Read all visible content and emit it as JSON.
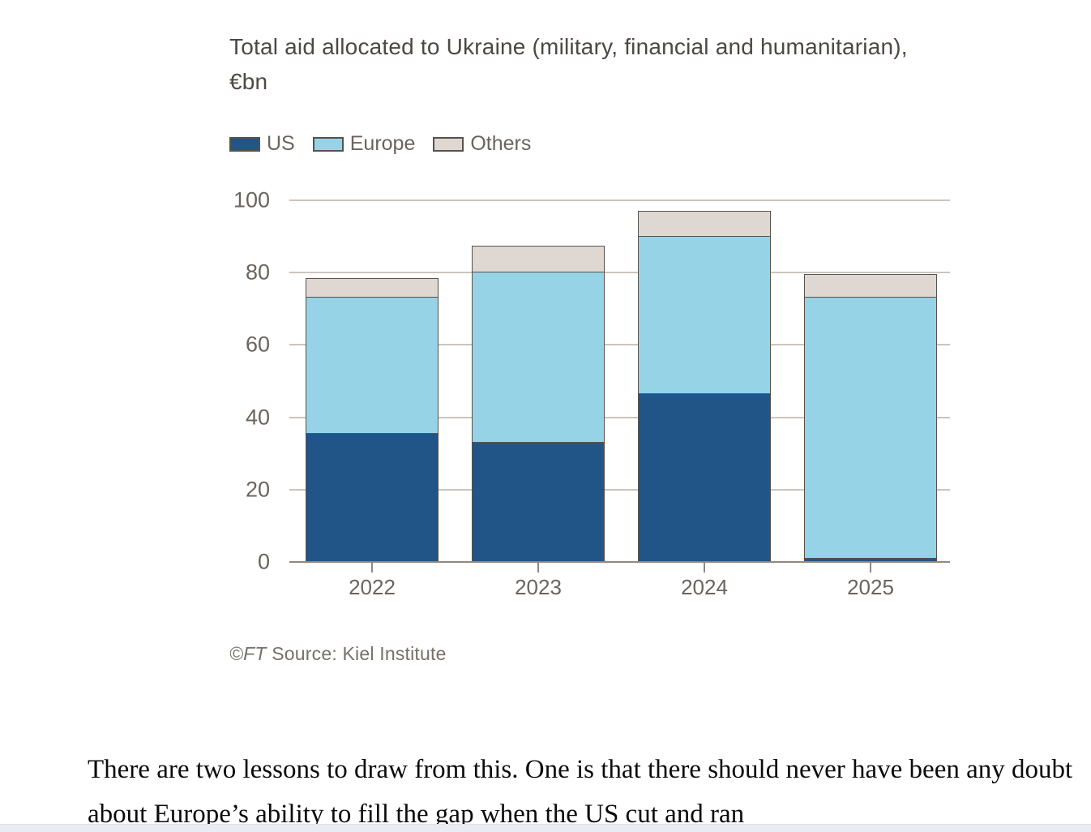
{
  "chart": {
    "title_line1": "Total aid allocated to Ukraine (military, financial and humanitarian),",
    "title_line2": "€bn",
    "credit": "©FT",
    "source": "Source: Kiel Institute"
  },
  "chart_data": {
    "type": "bar",
    "stacked": true,
    "title": "Total aid allocated to Ukraine (military, financial and humanitarian), €bn",
    "unit": "€bn",
    "categories": [
      "2022",
      "2023",
      "2024",
      "2025"
    ],
    "series": [
      {
        "name": "US",
        "color": "#215588",
        "values": [
          35.5,
          33.0,
          46.5,
          0.8
        ]
      },
      {
        "name": "Europe",
        "color": "#96d3e6",
        "values": [
          37.5,
          47.0,
          43.5,
          72.3
        ]
      },
      {
        "name": "Others",
        "color": "#ded7d2",
        "values": [
          5.5,
          7.5,
          7.0,
          6.5
        ]
      }
    ],
    "stack_totals": [
      78.5,
      87.5,
      97.0,
      79.6
    ],
    "ylim": [
      0,
      100
    ],
    "yticks": [
      0,
      20,
      40,
      60,
      80,
      100
    ],
    "grid": "horizontal",
    "legend_position": "top-left",
    "xlabel": "",
    "ylabel": ""
  },
  "colors": {
    "us": "#215588",
    "europe": "#96d3e6",
    "others": "#ded7d2",
    "segment_border": "#57524c",
    "gridline": "#ccc4bc",
    "axis": "#8f8882",
    "axis_text": "#6b645e",
    "title_text": "#4c4845",
    "source_text": "#767069",
    "bottom_strip": "#e9edf2"
  },
  "article": {
    "paragraph": "There are two lessons to draw from this. One is that there should never have been any doubt about Europe’s ability to fill the gap when the US cut and ran"
  }
}
